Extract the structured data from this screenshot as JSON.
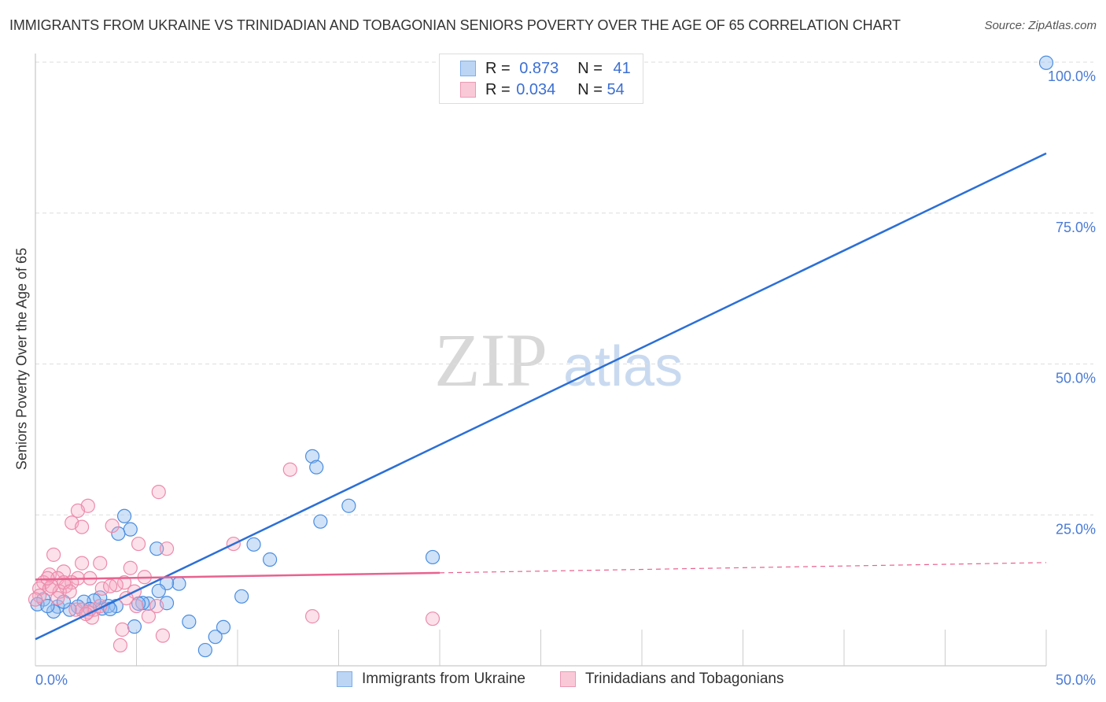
{
  "title": "IMMIGRANTS FROM UKRAINE VS TRINIDADIAN AND TOBAGONIAN SENIORS POVERTY OVER THE AGE OF 65 CORRELATION CHART",
  "source": "Source: ZipAtlas.com",
  "watermark": "ZIPatlas",
  "legend": {
    "r_label": "R =",
    "n_label": "N =",
    "blue": {
      "r": "0.873",
      "n": "41"
    },
    "pink": {
      "r": "0.034",
      "n": "54"
    }
  },
  "chart_data": {
    "type": "scatter",
    "title": "IMMIGRANTS FROM UKRAINE VS TRINIDADIAN AND TOBAGONIAN SENIORS POVERTY OVER THE AGE OF 65 CORRELATION CHART",
    "xlabel": "",
    "ylabel": "Seniors Poverty Over the Age of 65",
    "xlim": [
      0,
      50
    ],
    "ylim": [
      0,
      100
    ],
    "x_ticks": [
      "0.0%",
      "50.0%"
    ],
    "y_ticks": [
      "25.0%",
      "50.0%",
      "75.0%",
      "100.0%"
    ],
    "legend_position": "bottom",
    "colors": {
      "blue": "#4a8de0",
      "pink": "#ec8bab",
      "blue_line": "#2b6fd6",
      "pink_line": "#e8628f"
    },
    "series": [
      {
        "name": "Immigrants from Ukraine",
        "color": "blue",
        "trend": [
          [
            0,
            4.4
          ],
          [
            50,
            84.9
          ]
        ],
        "points": [
          [
            50,
            99.9
          ],
          [
            13.7,
            34.7
          ],
          [
            13.9,
            32.9
          ],
          [
            15.5,
            26.5
          ],
          [
            14.1,
            23.9
          ],
          [
            19.65,
            18.0
          ],
          [
            10.8,
            20.1
          ],
          [
            11.6,
            17.6
          ],
          [
            4.4,
            24.8
          ],
          [
            4.7,
            22.6
          ],
          [
            4.1,
            21.9
          ],
          [
            6.0,
            19.4
          ],
          [
            7.1,
            13.6
          ],
          [
            6.5,
            13.7
          ],
          [
            6.1,
            12.4
          ],
          [
            10.2,
            11.5
          ],
          [
            6.5,
            10.4
          ],
          [
            5.6,
            10.3
          ],
          [
            5.3,
            10.4
          ],
          [
            5.1,
            10.3
          ],
          [
            4.9,
            6.5
          ],
          [
            7.6,
            7.3
          ],
          [
            9.3,
            6.4
          ],
          [
            8.9,
            4.8
          ],
          [
            8.4,
            2.6
          ],
          [
            4.0,
            9.9
          ],
          [
            3.3,
            9.5
          ],
          [
            3.6,
            9.9
          ],
          [
            3.2,
            11.3
          ],
          [
            2.9,
            10.8
          ],
          [
            2.4,
            10.6
          ],
          [
            2.1,
            9.8
          ],
          [
            1.7,
            9.3
          ],
          [
            1.1,
            9.8
          ],
          [
            0.9,
            9.0
          ],
          [
            1.4,
            10.6
          ],
          [
            0.4,
            11.0
          ],
          [
            0.1,
            10.2
          ],
          [
            0.6,
            9.9
          ],
          [
            2.7,
            9.4
          ],
          [
            3.7,
            9.4
          ]
        ]
      },
      {
        "name": "Trinidadians and Tobagonians",
        "color": "pink",
        "trend": [
          [
            0,
            14.3
          ],
          [
            20,
            15.4
          ],
          [
            50,
            17.1
          ]
        ],
        "points": [
          [
            12.6,
            32.5
          ],
          [
            6.1,
            28.8
          ],
          [
            2.6,
            26.5
          ],
          [
            2.1,
            25.7
          ],
          [
            1.8,
            23.7
          ],
          [
            2.3,
            23.0
          ],
          [
            3.8,
            23.2
          ],
          [
            5.1,
            20.2
          ],
          [
            6.5,
            19.4
          ],
          [
            9.8,
            20.2
          ],
          [
            0.9,
            18.4
          ],
          [
            3.2,
            17.0
          ],
          [
            2.3,
            17.0
          ],
          [
            4.7,
            16.2
          ],
          [
            1.4,
            15.6
          ],
          [
            0.7,
            15.1
          ],
          [
            1.1,
            14.5
          ],
          [
            2.1,
            14.5
          ],
          [
            5.4,
            14.7
          ],
          [
            4.4,
            13.8
          ],
          [
            4.0,
            13.4
          ],
          [
            1.8,
            13.8
          ],
          [
            1.5,
            13.2
          ],
          [
            0.4,
            13.8
          ],
          [
            0.2,
            12.8
          ],
          [
            0.7,
            12.8
          ],
          [
            3.3,
            12.8
          ],
          [
            4.9,
            12.3
          ],
          [
            1.2,
            12.3
          ],
          [
            0.2,
            11.6
          ],
          [
            5.0,
            9.9
          ],
          [
            6.0,
            9.9
          ],
          [
            2.9,
            9.3
          ],
          [
            2.6,
            8.9
          ],
          [
            2.8,
            8.0
          ],
          [
            5.6,
            8.2
          ],
          [
            13.7,
            8.2
          ],
          [
            19.65,
            7.8
          ],
          [
            4.3,
            6.0
          ],
          [
            6.3,
            5.0
          ],
          [
            4.2,
            3.4
          ],
          [
            2.0,
            9.3
          ],
          [
            3.7,
            13.2
          ],
          [
            2.7,
            14.5
          ],
          [
            1.4,
            13.8
          ],
          [
            0.8,
            13.2
          ],
          [
            2.3,
            9.3
          ],
          [
            3.2,
            9.9
          ],
          [
            0.6,
            14.5
          ],
          [
            1.7,
            12.3
          ],
          [
            1.1,
            11.2
          ],
          [
            0,
            11.0
          ],
          [
            4.5,
            11.2
          ],
          [
            2.5,
            8.6
          ]
        ]
      }
    ]
  }
}
